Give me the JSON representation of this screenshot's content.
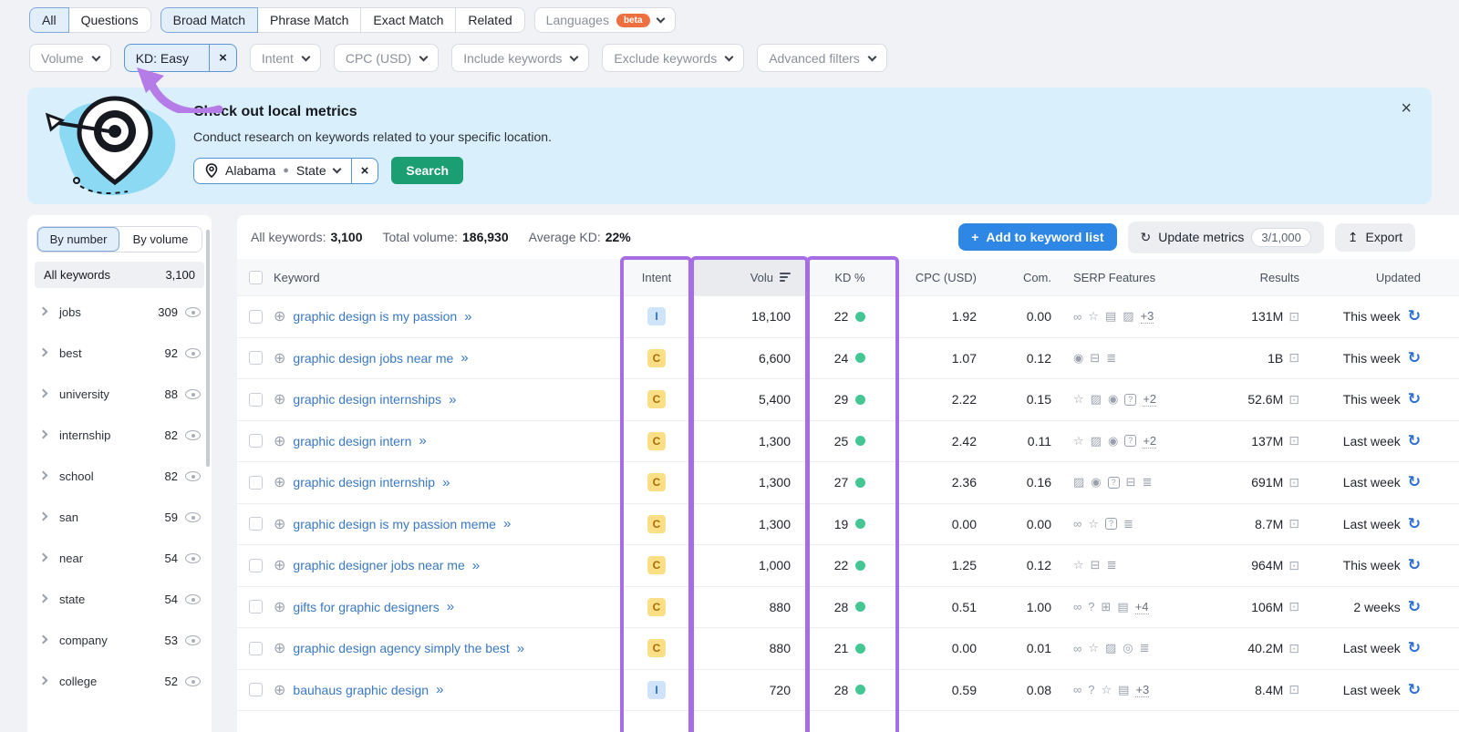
{
  "match_tabs": {
    "group1": [
      {
        "label": "All",
        "active": true
      },
      {
        "label": "Questions",
        "active": false
      }
    ],
    "group2": [
      {
        "label": "Broad Match",
        "active": true
      },
      {
        "label": "Phrase Match",
        "active": false
      },
      {
        "label": "Exact Match",
        "active": false
      },
      {
        "label": "Related",
        "active": false
      }
    ],
    "languages": {
      "label": "Languages",
      "badge": "beta"
    }
  },
  "filter_bar": {
    "chips": [
      {
        "label": "Volume",
        "kind": "dropdown"
      },
      {
        "label": "KD: Easy",
        "kind": "active"
      },
      {
        "label": "Intent",
        "kind": "dropdown"
      },
      {
        "label": "CPC (USD)",
        "kind": "dropdown"
      },
      {
        "label": "Include keywords",
        "kind": "dropdown"
      },
      {
        "label": "Exclude keywords",
        "kind": "dropdown"
      },
      {
        "label": "Advanced filters",
        "kind": "dropdown"
      }
    ]
  },
  "banner": {
    "title": "Check out local metrics",
    "subtitle": "Conduct research on keywords related to your specific location.",
    "location_value": "Alabama",
    "location_type": "State",
    "search_label": "Search",
    "close_glyph": "×"
  },
  "sidebar": {
    "tabs": [
      {
        "label": "By number",
        "active": true
      },
      {
        "label": "By volume",
        "active": false
      }
    ],
    "all_row": {
      "label": "All keywords",
      "count": "3,100"
    },
    "groups": [
      {
        "label": "jobs",
        "count": "309"
      },
      {
        "label": "best",
        "count": "92"
      },
      {
        "label": "university",
        "count": "88"
      },
      {
        "label": "internship",
        "count": "82"
      },
      {
        "label": "school",
        "count": "82"
      },
      {
        "label": "san",
        "count": "59"
      },
      {
        "label": "near",
        "count": "54"
      },
      {
        "label": "state",
        "count": "54"
      },
      {
        "label": "company",
        "count": "53"
      },
      {
        "label": "college",
        "count": "52"
      }
    ]
  },
  "toolbar": {
    "stats": [
      {
        "label": "All keywords:",
        "value": "3,100"
      },
      {
        "label": "Total volume:",
        "value": "186,930"
      },
      {
        "label": "Average KD:",
        "value": "22%"
      }
    ],
    "add_button": "Add to keyword list",
    "update_button": "Update metrics",
    "update_count": "3/1,000",
    "export_button": "Export"
  },
  "table": {
    "columns": {
      "keyword": "Keyword",
      "intent": "Intent",
      "volume": "Volu",
      "kd": "KD %",
      "cpc": "CPC (USD)",
      "com": "Com.",
      "serp": "SERP Features",
      "results": "Results",
      "updated": "Updated"
    },
    "sorted_column": "volume",
    "rows": [
      {
        "keyword": "graphic design is my passion",
        "intent": "I",
        "volume": "18,100",
        "kd": "22",
        "cpc": "1.92",
        "com": "0.00",
        "serp": [
          "link",
          "star",
          "image",
          "images"
        ],
        "serp_more": "+3",
        "results": "131M",
        "updated": "This week"
      },
      {
        "keyword": "graphic design jobs near me",
        "intent": "C",
        "volume": "6,600",
        "kd": "24",
        "cpc": "1.07",
        "com": "0.12",
        "serp": [
          "video",
          "jobs",
          "sitelinks"
        ],
        "serp_more": "",
        "results": "1B",
        "updated": "This week"
      },
      {
        "keyword": "graphic design internships",
        "intent": "C",
        "volume": "5,400",
        "kd": "29",
        "cpc": "2.22",
        "com": "0.15",
        "serp": [
          "star",
          "images",
          "video",
          "faq"
        ],
        "serp_more": "+2",
        "results": "52.6M",
        "updated": "This week"
      },
      {
        "keyword": "graphic design intern",
        "intent": "C",
        "volume": "1,300",
        "kd": "25",
        "cpc": "2.42",
        "com": "0.11",
        "serp": [
          "star",
          "images",
          "video",
          "faq"
        ],
        "serp_more": "+2",
        "results": "137M",
        "updated": "Last week"
      },
      {
        "keyword": "graphic design internship",
        "intent": "C",
        "volume": "1,300",
        "kd": "27",
        "cpc": "2.36",
        "com": "0.16",
        "serp": [
          "images",
          "video",
          "faq",
          "jobs",
          "sitelinks"
        ],
        "serp_more": "",
        "results": "691M",
        "updated": "Last week"
      },
      {
        "keyword": "graphic design is my passion meme",
        "intent": "C",
        "volume": "1,300",
        "kd": "19",
        "cpc": "0.00",
        "com": "0.00",
        "serp": [
          "link",
          "star",
          "faq",
          "sitelinks"
        ],
        "serp_more": "",
        "results": "8.7M",
        "updated": "Last week"
      },
      {
        "keyword": "graphic designer jobs near me",
        "intent": "C",
        "volume": "1,000",
        "kd": "22",
        "cpc": "1.25",
        "com": "0.12",
        "serp": [
          "star",
          "jobs",
          "sitelinks"
        ],
        "serp_more": "",
        "results": "964M",
        "updated": "This week"
      },
      {
        "keyword": "gifts for graphic designers",
        "intent": "C",
        "volume": "880",
        "kd": "28",
        "cpc": "0.51",
        "com": "1.00",
        "serp": [
          "link",
          "question",
          "layout",
          "image"
        ],
        "serp_more": "+4",
        "results": "106M",
        "updated": "2 weeks"
      },
      {
        "keyword": "graphic design agency simply the best",
        "intent": "C",
        "volume": "880",
        "kd": "21",
        "cpc": "0.00",
        "com": "0.01",
        "serp": [
          "link",
          "star",
          "images",
          "location",
          "sitelinks"
        ],
        "serp_more": "",
        "results": "40.2M",
        "updated": "Last week"
      },
      {
        "keyword": "bauhaus graphic design",
        "intent": "I",
        "volume": "720",
        "kd": "28",
        "cpc": "0.59",
        "com": "0.08",
        "serp": [
          "link",
          "question",
          "star",
          "image"
        ],
        "serp_more": "+3",
        "results": "8.4M",
        "updated": "Last week"
      }
    ]
  },
  "highlights": {
    "purple_columns": [
      "Intent",
      "Volume",
      "KD %"
    ],
    "color": "#a66de5"
  },
  "icons": {
    "plus": "+",
    "refresh": "↻",
    "export": "↥",
    "close": "×",
    "add-circle": "⊕",
    "double-chevron": "»",
    "preview": "⊡",
    "serp": {
      "link": "∞",
      "star": "☆",
      "image": "▤",
      "images": "▨",
      "video": "◉",
      "faq": "?",
      "jobs": "⊟",
      "sitelinks": "≣",
      "location": "◎",
      "question": "?",
      "layout": "⊞"
    }
  },
  "colors": {
    "accent_blue": "#2e86e5",
    "link_blue": "#3a78c2",
    "green": "#1b9e72",
    "kd_green": "#43c795",
    "purple": "#a66de5",
    "banner_bg": "#d9effb",
    "intent_i_bg": "#cfe4fb",
    "intent_c_bg": "#fadf86",
    "beta_orange": "#ee7040"
  }
}
